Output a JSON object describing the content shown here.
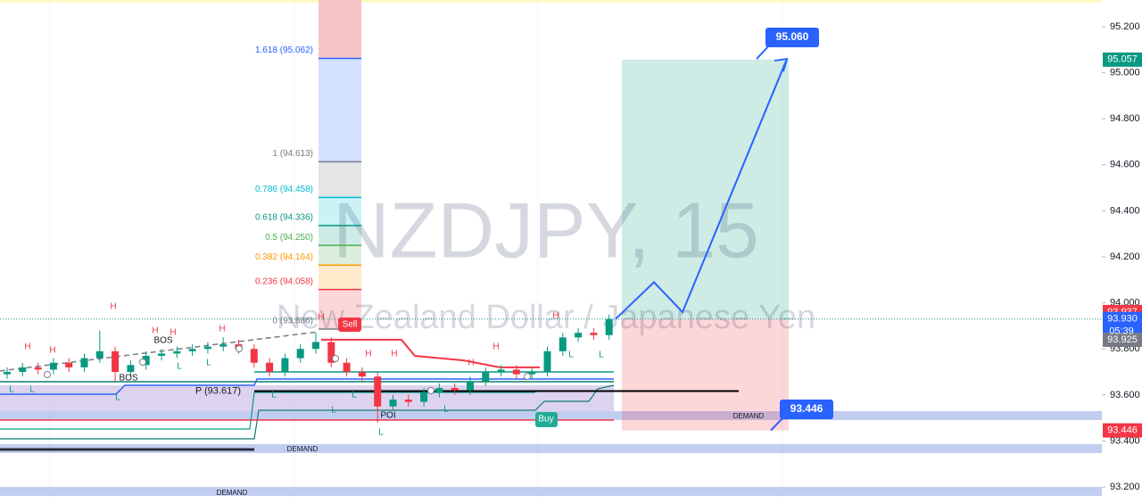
{
  "chart_data": {
    "type": "candlestick",
    "symbol": "NZDJPY, 15",
    "description": "New Zealand Dollar / Japanese Yen",
    "ylim": [
      93.15,
      95.316
    ],
    "yticks": [
      {
        "value": 93.2,
        "label": "93.200"
      },
      {
        "value": 93.4,
        "label": "93.400"
      },
      {
        "value": 93.6,
        "label": "93.600"
      },
      {
        "value": 93.8,
        "label": "93.800"
      },
      {
        "value": 94.0,
        "label": "94.000"
      },
      {
        "value": 94.2,
        "label": "94.200"
      },
      {
        "value": 94.4,
        "label": "94.400"
      },
      {
        "value": 94.6,
        "label": "94.600"
      },
      {
        "value": 94.8,
        "label": "94.800"
      },
      {
        "value": 95.0,
        "label": "95.000"
      },
      {
        "value": 95.2,
        "label": "95.200"
      }
    ],
    "up_color": "#089981",
    "down_color": "#f23645",
    "open": [
      93.69,
      93.7,
      93.72,
      93.71,
      93.74,
      93.72,
      93.76,
      93.79,
      93.7,
      93.73,
      93.77,
      93.78,
      93.79,
      93.8,
      93.81,
      93.82,
      93.8,
      93.74,
      93.7,
      93.76,
      93.8,
      93.83,
      93.74,
      93.7,
      93.68,
      93.55,
      93.58,
      93.57,
      93.61,
      93.63,
      93.62,
      93.66,
      93.7,
      93.71,
      93.69,
      93.7,
      93.79,
      93.85,
      93.87,
      93.86
    ],
    "high": [
      93.72,
      93.74,
      93.74,
      93.76,
      93.76,
      93.78,
      93.88,
      93.81,
      93.75,
      93.79,
      93.8,
      93.81,
      93.82,
      93.83,
      93.85,
      93.84,
      93.82,
      93.76,
      93.78,
      93.82,
      93.87,
      93.85,
      93.76,
      93.72,
      93.7,
      93.6,
      93.6,
      93.63,
      93.65,
      93.65,
      93.68,
      93.72,
      93.73,
      93.73,
      93.72,
      93.81,
      93.87,
      93.89,
      93.89,
      93.95
    ],
    "low": [
      93.67,
      93.68,
      93.69,
      93.69,
      93.7,
      93.7,
      93.74,
      93.66,
      93.68,
      93.71,
      93.75,
      93.76,
      93.77,
      93.78,
      93.79,
      93.78,
      93.72,
      93.68,
      93.68,
      93.74,
      93.78,
      93.72,
      93.68,
      93.66,
      93.48,
      93.53,
      93.55,
      93.55,
      93.59,
      93.6,
      93.6,
      93.64,
      93.68,
      93.67,
      93.67,
      93.68,
      93.77,
      93.83,
      93.84,
      93.84
    ],
    "close": [
      93.7,
      93.72,
      93.71,
      93.74,
      93.72,
      93.76,
      93.79,
      93.7,
      93.73,
      93.77,
      93.78,
      93.79,
      93.8,
      93.81,
      93.82,
      93.8,
      93.74,
      93.7,
      93.76,
      93.8,
      93.83,
      93.74,
      93.7,
      93.68,
      93.55,
      93.58,
      93.57,
      93.61,
      93.63,
      93.62,
      93.66,
      93.7,
      93.71,
      93.69,
      93.7,
      93.79,
      93.85,
      93.87,
      93.86,
      93.93
    ],
    "fib": [
      {
        "label": "1.618 (95.062)",
        "value": 95.062,
        "color": "#2962ff"
      },
      {
        "label": "1 (94.613)",
        "value": 94.613,
        "color": "#787b86"
      },
      {
        "label": "0.786 (94.458)",
        "value": 94.458,
        "color": "#00bcd4"
      },
      {
        "label": "0.618 (94.336)",
        "value": 94.336,
        "color": "#089981"
      },
      {
        "label": "0.5 (94.250)",
        "value": 94.25,
        "color": "#4caf50"
      },
      {
        "label": "0.382 (94.164)",
        "value": 94.164,
        "color": "#ff9800"
      },
      {
        "label": "0.236 (94.058)",
        "value": 94.058,
        "color": "#f23645"
      },
      {
        "label": "0 (93.886)",
        "value": 93.886,
        "color": "#787b86"
      }
    ],
    "position": {
      "target": 95.057,
      "entry": 93.93,
      "stop": 93.446
    },
    "projection": {
      "color": "#2962ff",
      "values": [
        93.93,
        94.09,
        93.96,
        95.06
      ]
    },
    "trail": {
      "color": "#f23645",
      "values": [
        93.84,
        93.84,
        93.77,
        93.75,
        93.72,
        93.72
      ]
    },
    "pivot": {
      "label": "P (93.617)",
      "value": 93.617
    },
    "targets": [
      {
        "value": 95.06,
        "label": "95.060"
      },
      {
        "value": 93.446,
        "label": "93.446"
      }
    ],
    "price_tags": [
      {
        "value": 95.057,
        "label": "95.057",
        "color": "#089981"
      },
      {
        "value": 93.937,
        "label": "93.937",
        "color": "#f23645"
      },
      {
        "value": 93.93,
        "label": "93.930",
        "color": "#2962ff"
      },
      {
        "value": 93.925,
        "label": "93.925",
        "color": "#787b86"
      },
      {
        "value": 93.446,
        "label": "93.446",
        "color": "#f23645"
      }
    ],
    "countdown": "05:39",
    "swing_labels": [
      "H",
      "H",
      "H",
      "H",
      "H",
      "H",
      "H",
      "H",
      "H",
      "H",
      "H",
      "H",
      "L",
      "L",
      "L",
      "L",
      "L",
      "L",
      "L",
      "L",
      "L",
      "L",
      "L",
      "L"
    ],
    "annotations": [
      "BOS",
      "BOS",
      "Sell",
      "Buy",
      "POI",
      "DEMAND",
      "DEMAND",
      "DEMAND"
    ]
  }
}
